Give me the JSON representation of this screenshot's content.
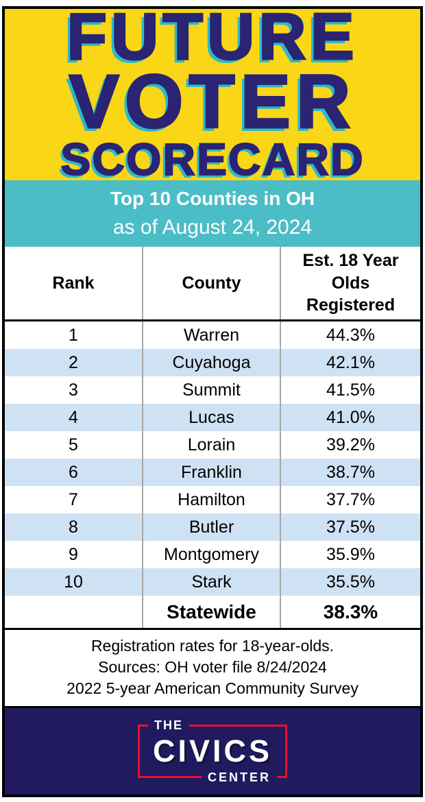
{
  "title": {
    "line1": "FUTURE",
    "line2": "VOTER",
    "line3": "SCORECARD"
  },
  "subtitle": {
    "line1": "Top 10 Counties in OH",
    "line2": "as of August 24, 2024"
  },
  "table": {
    "headers": {
      "rank": "Rank",
      "county": "County",
      "value": "Est. 18 Year Olds Registered"
    },
    "rows": [
      {
        "rank": "1",
        "county": "Warren",
        "value": "44.3%"
      },
      {
        "rank": "2",
        "county": "Cuyahoga",
        "value": "42.1%"
      },
      {
        "rank": "3",
        "county": "Summit",
        "value": "41.5%"
      },
      {
        "rank": "4",
        "county": "Lucas",
        "value": "41.0%"
      },
      {
        "rank": "5",
        "county": "Lorain",
        "value": "39.2%"
      },
      {
        "rank": "6",
        "county": "Franklin",
        "value": "38.7%"
      },
      {
        "rank": "7",
        "county": "Hamilton",
        "value": "37.7%"
      },
      {
        "rank": "8",
        "county": "Butler",
        "value": "37.5%"
      },
      {
        "rank": "9",
        "county": "Montgomery",
        "value": "35.9%"
      },
      {
        "rank": "10",
        "county": "Stark",
        "value": "35.5%"
      }
    ],
    "summary": {
      "label": "Statewide",
      "value": "38.3%"
    }
  },
  "notes": {
    "line1": "Registration rates for 18-year-olds.",
    "line2": "Sources: OH voter file 8/24/2024",
    "line3": "2022 5-year American Community Survey"
  },
  "logo": {
    "top": "THE",
    "main": "CIVICS",
    "bottom": "CENTER"
  },
  "colors": {
    "banner_yellow": "#F9D616",
    "title_navy": "#2A2472",
    "title_shadow_teal": "#2EB8C9",
    "subbanner_teal": "#4BBDC7",
    "row_alt_blue": "#CFE2F3",
    "divider_gray": "#A6A6A6",
    "footer_navy": "#211A5E",
    "logo_red": "#E8112D"
  }
}
